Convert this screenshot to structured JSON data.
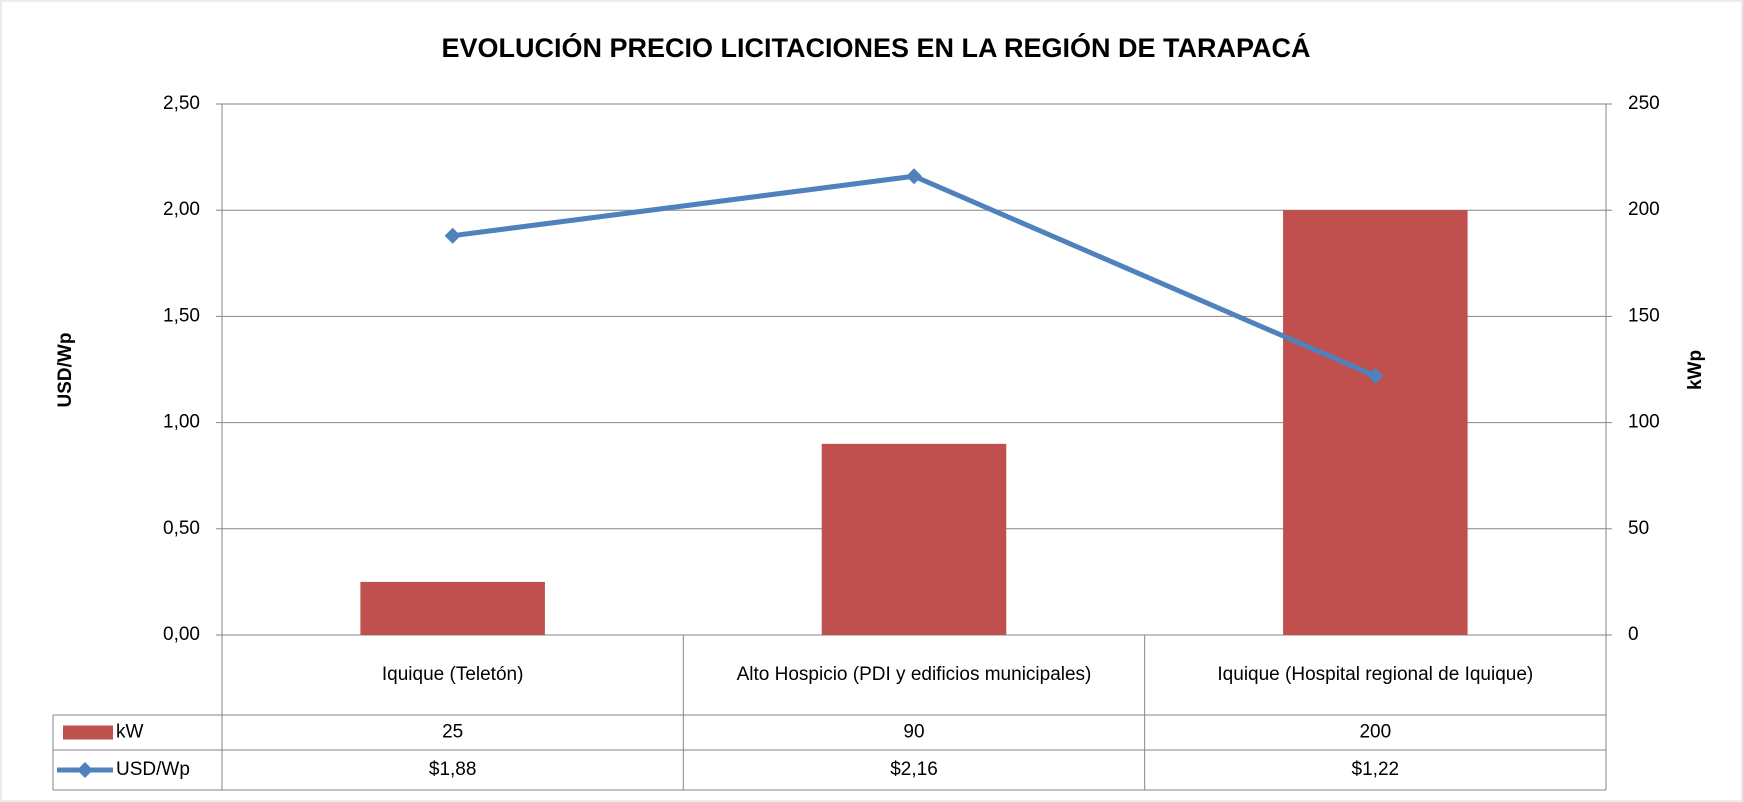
{
  "chart_data": {
    "type": "bar_line",
    "title": "EVOLUCIÓN PRECIO LICITACIONES EN LA REGIÓN DE TARAPACÁ",
    "ylabel": "USD/Wp",
    "y2label": "kWp",
    "categories": [
      "Iquique (Teletón)",
      "Alto Hospicio (PDI y edificios municipales)",
      "Iquique (Hospital regional de Iquique)"
    ],
    "series": [
      {
        "name": "kW",
        "type": "bar",
        "axis": "y2",
        "color": "#c0504d",
        "values": [
          25,
          90,
          200
        ]
      },
      {
        "name": "USD/Wp",
        "type": "line",
        "axis": "y",
        "color": "#4f81bd",
        "values": [
          1.88,
          2.16,
          1.22
        ],
        "value_labels": [
          "$1,88",
          "$2,16",
          "$1,22"
        ]
      }
    ],
    "ylim": [
      0,
      2.5
    ],
    "yticks": [
      {
        "value": 0,
        "label": "0,00"
      },
      {
        "value": 0.5,
        "label": "0,50"
      },
      {
        "value": 1,
        "label": "1,00"
      },
      {
        "value": 1.5,
        "label": "1,50"
      },
      {
        "value": 2,
        "label": "2,00"
      },
      {
        "value": 2.5,
        "label": "2,50"
      }
    ],
    "y2lim": [
      0,
      250
    ],
    "y2ticks": [
      0,
      50,
      100,
      150,
      200,
      250
    ],
    "grid": true
  }
}
